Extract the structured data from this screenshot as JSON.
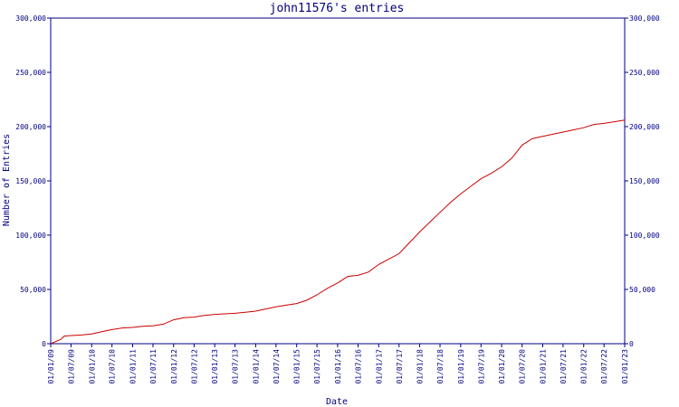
{
  "chart_data": {
    "type": "line",
    "title": "john11576's entries",
    "xlabel": "Date",
    "ylabel": "Number of Entries",
    "colors": {
      "axis": "#000080",
      "text": "#000080",
      "line": "#cc0000",
      "background": "#ffffff"
    },
    "grid": false,
    "ylim": [
      0,
      300000
    ],
    "xlim": [
      "2009-01-01",
      "2023-01-01"
    ],
    "y_ticks": [
      0,
      50000,
      100000,
      150000,
      200000,
      250000,
      300000
    ],
    "y_tick_labels": [
      "0",
      "50,000",
      "100,000",
      "150,000",
      "200,000",
      "250,000",
      "300,000"
    ],
    "x_ticks": [
      "2009-01-01",
      "2009-07-01",
      "2010-01-01",
      "2010-07-01",
      "2011-01-01",
      "2011-07-01",
      "2012-01-01",
      "2012-07-01",
      "2013-01-01",
      "2013-07-01",
      "2014-01-01",
      "2014-07-01",
      "2015-01-01",
      "2015-07-01",
      "2016-01-01",
      "2016-07-01",
      "2017-01-01",
      "2017-07-01",
      "2018-01-01",
      "2018-07-01",
      "2019-01-01",
      "2019-07-01",
      "2020-01-01",
      "2020-07-01",
      "2021-01-01",
      "2021-07-01",
      "2022-01-01",
      "2022-07-01",
      "2023-01-01"
    ],
    "x_tick_labels": [
      "01/01/09",
      "01/07/09",
      "01/01/10",
      "01/07/10",
      "01/01/11",
      "01/07/11",
      "01/01/12",
      "01/07/12",
      "01/01/13",
      "01/07/13",
      "01/01/14",
      "01/07/14",
      "01/01/15",
      "01/07/15",
      "01/01/16",
      "01/07/16",
      "01/01/17",
      "01/07/17",
      "01/01/18",
      "01/07/18",
      "01/01/19",
      "01/07/19",
      "01/01/20",
      "01/07/20",
      "01/01/21",
      "01/07/21",
      "01/01/22",
      "01/07/22",
      "01/01/23"
    ],
    "series": [
      {
        "x": [
          "2009-01-01",
          "2009-04-01",
          "2009-05-01",
          "2009-07-01",
          "2009-10-01",
          "2010-01-01",
          "2010-04-01",
          "2010-07-01",
          "2010-10-01",
          "2011-01-01",
          "2011-04-01",
          "2011-07-01",
          "2011-10-01",
          "2012-01-01",
          "2012-04-01",
          "2012-07-01",
          "2012-10-01",
          "2013-01-01",
          "2013-04-01",
          "2013-07-01",
          "2013-10-01",
          "2014-01-01",
          "2014-04-01",
          "2014-07-01",
          "2014-10-01",
          "2015-01-01",
          "2015-04-01",
          "2015-07-01",
          "2015-10-01",
          "2016-01-01",
          "2016-04-01",
          "2016-07-01",
          "2016-10-01",
          "2017-01-01",
          "2017-04-01",
          "2017-07-01",
          "2017-10-01",
          "2018-01-01",
          "2018-04-01",
          "2018-07-01",
          "2018-10-01",
          "2019-01-01",
          "2019-04-01",
          "2019-07-01",
          "2019-10-01",
          "2020-01-01",
          "2020-04-01",
          "2020-07-01",
          "2020-10-01",
          "2021-01-01",
          "2021-04-01",
          "2021-07-01",
          "2021-10-01",
          "2022-01-01",
          "2022-04-01",
          "2022-07-01",
          "2022-10-01",
          "2023-01-01"
        ],
        "y": [
          0,
          4000,
          7000,
          7500,
          8000,
          9000,
          11000,
          13000,
          14500,
          15000,
          16000,
          16500,
          18000,
          22000,
          24000,
          24500,
          26000,
          27000,
          27500,
          28000,
          29000,
          30000,
          32000,
          34000,
          35500,
          37000,
          40000,
          45000,
          51000,
          56000,
          62000,
          63000,
          66000,
          73000,
          78000,
          83000,
          93000,
          103000,
          112000,
          121000,
          130000,
          138000,
          145000,
          152000,
          157000,
          163000,
          171000,
          183000,
          189000,
          191000,
          193000,
          195000,
          197000,
          199000,
          202000,
          203000,
          204500,
          206000
        ]
      }
    ]
  }
}
